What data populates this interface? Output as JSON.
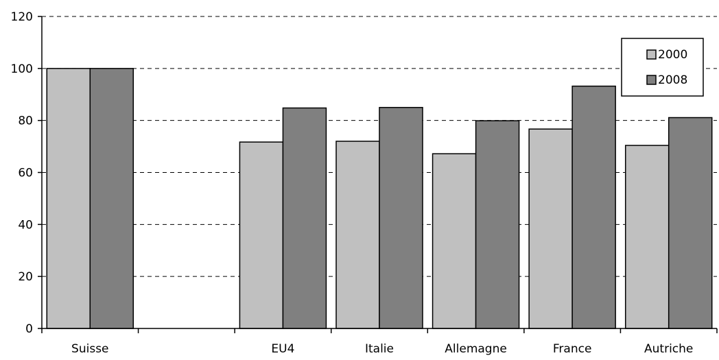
{
  "chart_data": {
    "type": "bar",
    "categories": [
      "Suisse",
      "",
      "EU4",
      "Italie",
      "Allemagne",
      "France",
      "Autriche"
    ],
    "series": [
      {
        "name": "2000",
        "values": [
          100,
          null,
          71.7,
          72.0,
          67.2,
          76.7,
          70.4
        ],
        "color": "#c0c0c0"
      },
      {
        "name": "2008",
        "values": [
          100,
          null,
          84.8,
          85.0,
          79.9,
          93.2,
          81.1
        ],
        "color": "#808080"
      }
    ],
    "ylim": [
      0,
      120
    ],
    "yticks": [
      0,
      20,
      40,
      60,
      80,
      100,
      120
    ],
    "ytick_labels": [
      "0",
      "20",
      "40",
      "60",
      "80",
      "100",
      "120"
    ],
    "grid": true,
    "legend_position": "top-right",
    "title": "",
    "xlabel": "",
    "ylabel": ""
  }
}
